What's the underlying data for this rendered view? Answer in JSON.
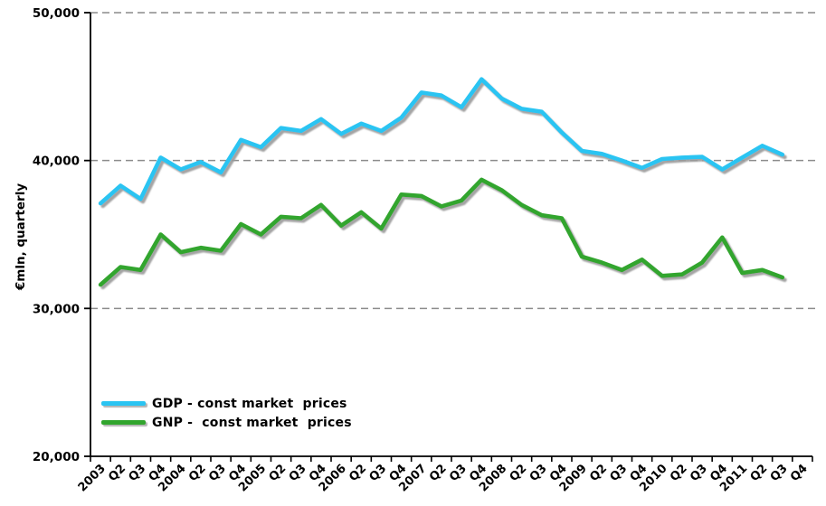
{
  "chart": {
    "y_axis_title": "€mln, quarterly",
    "legend": {
      "gdp": {
        "label": "GDP - const market  prices"
      },
      "gnp": {
        "label": "GNP -  const market  prices"
      }
    }
  },
  "chart_data": {
    "type": "line",
    "categories": [
      "2003",
      "Q2",
      "Q3",
      "Q4",
      "2004",
      "Q2",
      "Q3",
      "Q4",
      "2005",
      "Q2",
      "Q3",
      "Q4",
      "2006",
      "Q2",
      "Q3",
      "Q4",
      "2007",
      "Q2",
      "Q3",
      "Q4",
      "2008",
      "Q2",
      "Q3",
      "Q4",
      "2009",
      "Q2",
      "Q3",
      "Q4",
      "2010",
      "Q2",
      "Q3",
      "Q4",
      "2011",
      "Q2",
      "Q3",
      "Q4"
    ],
    "series": [
      {
        "name": "GDP - const market  prices",
        "color": "#2ac4f2",
        "values": [
          37100,
          38300,
          37400,
          40200,
          39400,
          39900,
          39200,
          41400,
          40900,
          42200,
          42000,
          42800,
          41800,
          42500,
          42000,
          42900,
          44600,
          44400,
          43600,
          45500,
          44200,
          43500,
          43300,
          41900,
          40650,
          40450,
          40000,
          39500,
          40100,
          40200,
          40250,
          39400,
          40200,
          41000,
          40400,
          null
        ]
      },
      {
        "name": "GNP -  const market  prices",
        "color": "#31a52d",
        "values": [
          31600,
          32800,
          32600,
          35000,
          33800,
          34100,
          33900,
          35700,
          35000,
          36200,
          36100,
          37000,
          35600,
          36500,
          35400,
          37700,
          37600,
          36900,
          37300,
          38700,
          38000,
          37000,
          36300,
          36100,
          33500,
          33100,
          32600,
          33300,
          32200,
          32300,
          33100,
          34800,
          32400,
          32600,
          32100,
          null
        ]
      }
    ],
    "title": "",
    "xlabel": "",
    "ylabel": "€mln, quarterly",
    "ylim": [
      20000,
      50000
    ],
    "yticks": [
      20000,
      30000,
      40000,
      50000
    ],
    "ytick_labels": [
      "20,000",
      "30,000",
      "40,000",
      "50,000"
    ],
    "grid": "horizontal-dashed",
    "legend_position": "inside-bottom-left",
    "axis_color": "#000000",
    "gridline_color": "#8c8c8c"
  }
}
